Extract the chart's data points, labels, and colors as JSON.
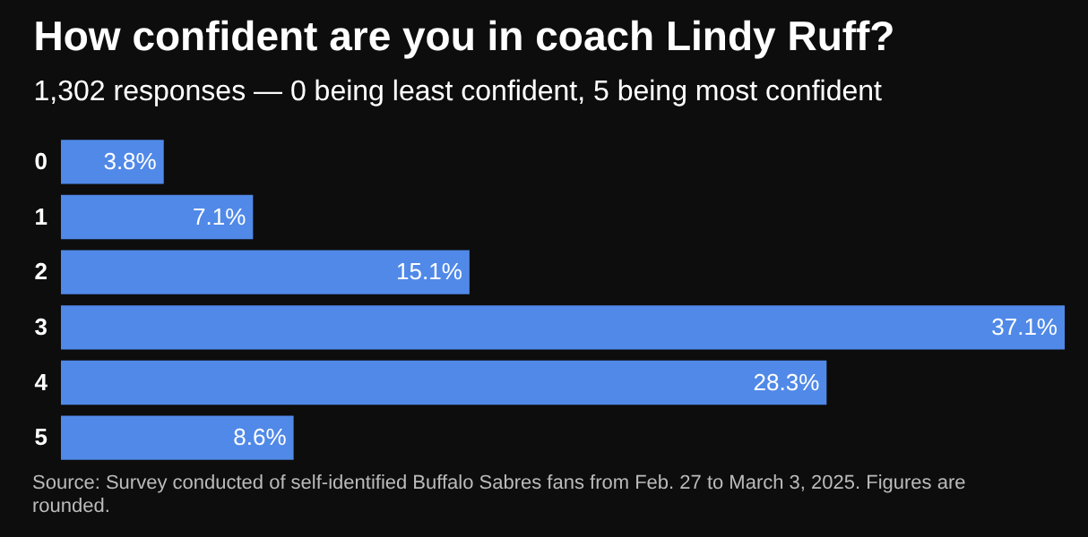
{
  "chart_data": {
    "type": "bar",
    "orientation": "horizontal",
    "title": "How confident are you in coach Lindy Ruff?",
    "subtitle": "1,302 responses — 0 being least confident, 5 being most confident",
    "categories": [
      "0",
      "1",
      "2",
      "3",
      "4",
      "5"
    ],
    "values": [
      3.8,
      7.1,
      15.1,
      37.1,
      28.3,
      8.6
    ],
    "value_labels": [
      "3.8%",
      "7.1%",
      "15.1%",
      "37.1%",
      "28.3%",
      "8.6%"
    ],
    "color": "#5089e8",
    "annotations": [
      "Source: Survey conducted of self-identified Buffalo Sabres fans from Feb. 27 to March 3, 2025. Figures are rounded."
    ]
  }
}
